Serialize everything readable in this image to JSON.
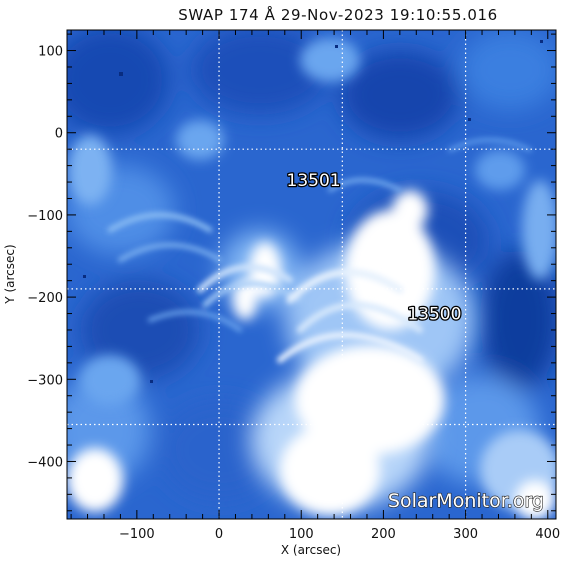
{
  "title": "SWAP 174 Å 29-Nov-2023 19:10:55.016",
  "x_axis": {
    "label": "X (arcsec)",
    "range": [
      -185,
      410
    ],
    "ticks": [
      -100,
      0,
      100,
      200,
      300,
      400
    ],
    "tick_labels": [
      "−100",
      "0",
      "100",
      "200",
      "300",
      "400"
    ]
  },
  "y_axis": {
    "label": "Y (arcsec)",
    "range": [
      -470,
      125
    ],
    "ticks": [
      100,
      0,
      -100,
      -200,
      -300,
      -400
    ],
    "tick_labels": [
      "100",
      "0",
      "−100",
      "−200",
      "−300",
      "−400"
    ]
  },
  "grid": {
    "x_lines": [
      0,
      150,
      300
    ],
    "y_lines": [
      -20,
      -190,
      -355
    ]
  },
  "active_regions": [
    {
      "number": "13501",
      "x": 115,
      "y": -65
    },
    {
      "number": "13500",
      "x": 262,
      "y": -227
    }
  ],
  "watermark": "SolarMonitor.org",
  "colors": {
    "deep_blue": "#0a3aa0",
    "mid_blue": "#2f6fd6",
    "light_blue": "#8dbcf4",
    "bright": "#ffffff"
  }
}
